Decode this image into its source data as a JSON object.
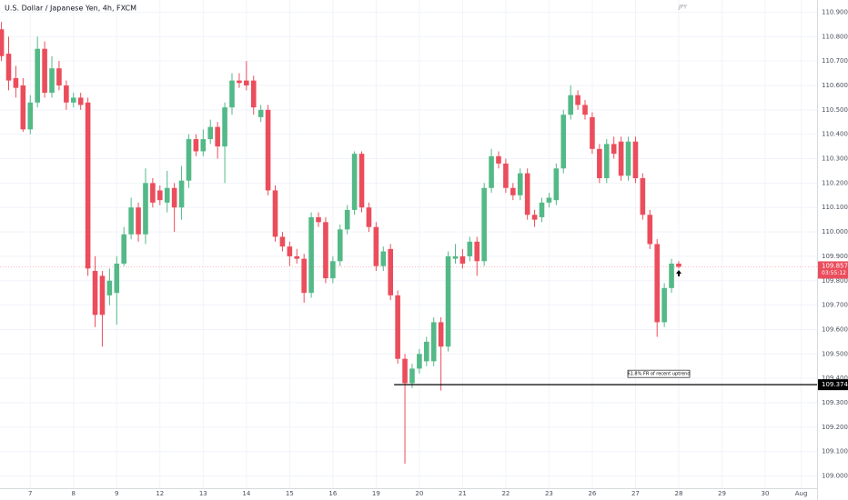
{
  "chart_data": {
    "type": "candlestick",
    "title": "U.S. Dollar / Japanese Yen, 4h, FXCM",
    "currency": "JPY",
    "up_color": "#53b987",
    "down_color": "#eb4d5c",
    "open": [
      110.83,
      110.73,
      110.63,
      110.6,
      110.42,
      110.53,
      110.75,
      110.57,
      110.67,
      110.6,
      110.53,
      110.55,
      110.53,
      109.84,
      109.82,
      109.74,
      109.75,
      109.87,
      109.99,
      110.1,
      109.99,
      110.2,
      110.17,
      110.12,
      110.18,
      110.1,
      110.21,
      110.38,
      110.33,
      110.38,
      110.43,
      110.35,
      110.51,
      110.62,
      110.62,
      110.62,
      110.47,
      110.5,
      110.17,
      109.98,
      109.94,
      109.9,
      109.89,
      109.75,
      110.06,
      110.04,
      109.81,
      109.88,
      110.01,
      110.09,
      110.32,
      110.1,
      110.02,
      109.86,
      109.93,
      109.74,
      109.48,
      109.38,
      109.44,
      109.47,
      109.47,
      109.63,
      109.53,
      109.89,
      109.9,
      109.9,
      109.96,
      109.88,
      110.18,
      110.31,
      110.28,
      110.18,
      110.15,
      110.24,
      110.07,
      110.06,
      110.12,
      110.13,
      110.26,
      110.48,
      110.56,
      110.52,
      110.47,
      110.34,
      110.22,
      110.36,
      110.37,
      110.23,
      110.37,
      110.22,
      110.07,
      109.95,
      109.63,
      109.77,
      109.87
    ],
    "high": [
      110.86,
      110.8,
      110.68,
      110.63,
      110.56,
      110.8,
      110.78,
      110.72,
      110.7,
      110.62,
      110.57,
      110.57,
      110.55,
      109.9,
      109.84,
      109.85,
      109.9,
      110.02,
      110.14,
      110.12,
      110.26,
      110.22,
      110.19,
      110.25,
      110.2,
      110.27,
      110.4,
      110.4,
      110.42,
      110.46,
      110.45,
      110.53,
      110.65,
      110.65,
      110.7,
      110.64,
      110.52,
      110.52,
      110.19,
      110.0,
      109.96,
      109.93,
      109.91,
      110.08,
      110.08,
      110.06,
      109.9,
      110.03,
      110.11,
      110.33,
      110.33,
      110.12,
      110.04,
      109.94,
      109.95,
      109.76,
      109.5,
      109.46,
      109.52,
      109.57,
      109.65,
      109.65,
      109.92,
      109.95,
      109.93,
      109.98,
      109.98,
      110.2,
      110.34,
      110.33,
      110.3,
      110.2,
      110.26,
      110.26,
      110.09,
      110.14,
      110.16,
      110.28,
      110.5,
      110.6,
      110.58,
      110.54,
      110.49,
      110.36,
      110.38,
      110.39,
      110.39,
      110.39,
      110.39,
      110.24,
      110.09,
      109.97,
      109.79,
      109.89,
      109.88
    ],
    "low": [
      110.7,
      110.58,
      110.55,
      110.41,
      110.4,
      110.51,
      110.55,
      110.55,
      110.58,
      110.5,
      110.51,
      110.5,
      109.82,
      109.61,
      109.53,
      109.7,
      109.62,
      109.86,
      109.97,
      109.96,
      109.95,
      110.1,
      110.11,
      110.08,
      110.0,
      110.05,
      110.18,
      110.31,
      110.31,
      110.36,
      110.3,
      110.2,
      110.48,
      110.59,
      110.58,
      110.48,
      110.45,
      110.15,
      109.96,
      109.92,
      109.86,
      109.87,
      109.71,
      109.73,
      110.02,
      109.79,
      109.79,
      109.86,
      109.99,
      110.07,
      110.08,
      110.0,
      109.84,
      109.84,
      109.72,
      109.46,
      109.05,
      109.36,
      109.42,
      109.45,
      109.45,
      109.35,
      109.51,
      109.87,
      109.85,
      109.88,
      109.82,
      109.86,
      110.16,
      110.26,
      110.16,
      110.13,
      110.13,
      110.05,
      110.02,
      110.04,
      110.1,
      110.11,
      110.24,
      110.46,
      110.5,
      110.46,
      110.32,
      110.2,
      110.2,
      110.3,
      110.21,
      110.21,
      110.2,
      110.05,
      109.93,
      109.57,
      109.61,
      109.75,
      109.85
    ],
    "close": [
      110.72,
      110.62,
      110.59,
      110.42,
      110.53,
      110.75,
      110.57,
      110.67,
      110.6,
      110.53,
      110.55,
      110.52,
      109.85,
      109.66,
      109.66,
      109.8,
      109.87,
      109.99,
      110.1,
      109.99,
      110.2,
      110.12,
      110.13,
      110.18,
      110.1,
      110.21,
      110.38,
      110.33,
      110.38,
      110.43,
      110.35,
      110.51,
      110.62,
      110.61,
      110.6,
      110.51,
      110.5,
      110.17,
      109.98,
      109.94,
      109.9,
      109.89,
      109.75,
      110.06,
      110.04,
      109.81,
      109.88,
      110.01,
      110.09,
      110.32,
      110.1,
      110.02,
      109.86,
      109.92,
      109.74,
      109.48,
      109.38,
      109.44,
      109.5,
      109.55,
      109.63,
      109.53,
      109.9,
      109.9,
      109.87,
      109.96,
      109.88,
      110.18,
      110.31,
      110.28,
      110.18,
      110.15,
      110.24,
      110.07,
      110.05,
      110.12,
      110.14,
      110.26,
      110.48,
      110.56,
      110.52,
      110.48,
      110.34,
      110.22,
      110.36,
      110.32,
      110.23,
      110.37,
      110.22,
      110.07,
      109.95,
      109.63,
      109.77,
      109.87,
      109.857
    ],
    "xlim": [
      -0.2,
      113.2
    ],
    "ylim": [
      108.95,
      110.95
    ],
    "xticks": [
      {
        "value": 4,
        "label": "7"
      },
      {
        "value": 10,
        "label": "8"
      },
      {
        "value": 16,
        "label": "9"
      },
      {
        "value": 22,
        "label": "12"
      },
      {
        "value": 28,
        "label": "13"
      },
      {
        "value": 34,
        "label": "14"
      },
      {
        "value": 40,
        "label": "15"
      },
      {
        "value": 46,
        "label": "16"
      },
      {
        "value": 52,
        "label": "19"
      },
      {
        "value": 58,
        "label": "20"
      },
      {
        "value": 64,
        "label": "21"
      },
      {
        "value": 70,
        "label": "22"
      },
      {
        "value": 76,
        "label": "23"
      },
      {
        "value": 82,
        "label": "26"
      },
      {
        "value": 88,
        "label": "27"
      },
      {
        "value": 94,
        "label": "28"
      },
      {
        "value": 100,
        "label": "29"
      },
      {
        "value": 106,
        "label": "30"
      },
      {
        "value": 111,
        "label": "Aug"
      }
    ],
    "yticks": [
      {
        "value": 109.0,
        "label": "109.000"
      },
      {
        "value": 109.1,
        "label": "109.100"
      },
      {
        "value": 109.2,
        "label": "109.200"
      },
      {
        "value": 109.3,
        "label": "109.300"
      },
      {
        "value": 109.4,
        "label": "109.400"
      },
      {
        "value": 109.5,
        "label": "109.500"
      },
      {
        "value": 109.6,
        "label": "109.600"
      },
      {
        "value": 109.7,
        "label": "109.700"
      },
      {
        "value": 109.8,
        "label": "109.800"
      },
      {
        "value": 109.9,
        "label": "109.900"
      },
      {
        "value": 110.0,
        "label": "110.000"
      },
      {
        "value": 110.1,
        "label": "110.100"
      },
      {
        "value": 110.2,
        "label": "110.200"
      },
      {
        "value": 110.3,
        "label": "110.300"
      },
      {
        "value": 110.4,
        "label": "110.400"
      },
      {
        "value": 110.5,
        "label": "110.500"
      },
      {
        "value": 110.6,
        "label": "110.600"
      },
      {
        "value": 110.7,
        "label": "110.700"
      },
      {
        "value": 110.8,
        "label": "110.800"
      },
      {
        "value": 110.9,
        "label": "110.900"
      }
    ],
    "grid": true,
    "hline": {
      "value": 109.374,
      "start": 54.5,
      "annotation": "61.8% FR of recent uptrend"
    },
    "last_price": {
      "value": 109.857,
      "countdown": "03:55:12"
    }
  }
}
